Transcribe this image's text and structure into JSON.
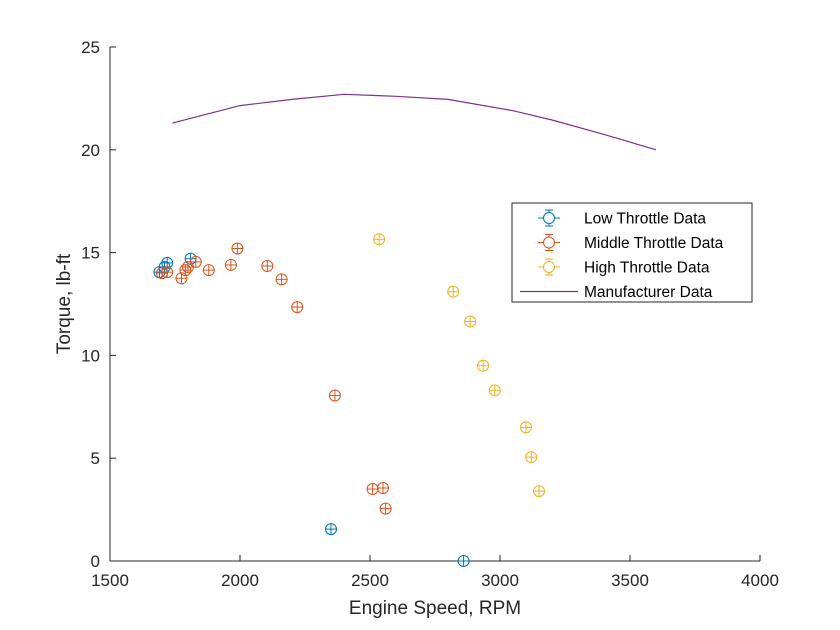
{
  "chart_data": {
    "type": "scatter",
    "title": "",
    "xlabel": "Engine Speed, RPM",
    "ylabel": "Torque, lb-ft",
    "xlim": [
      1500,
      4000
    ],
    "ylim": [
      0,
      25
    ],
    "xticks": [
      1500,
      2000,
      2500,
      3000,
      3500,
      4000
    ],
    "yticks": [
      0,
      5,
      10,
      15,
      20,
      25
    ],
    "xtick_labels": [
      "1500",
      "2000",
      "2500",
      "3000",
      "3500",
      "4000"
    ],
    "ytick_labels": [
      "0",
      "5",
      "10",
      "15",
      "20",
      "25"
    ],
    "grid": false,
    "legend_position": "right, mid-upper",
    "series": [
      {
        "name": "Low Throttle Data",
        "style": "errorbar-circle",
        "color": "#0072BD",
        "points": [
          [
            1690,
            14.05
          ],
          [
            1710,
            14.3
          ],
          [
            1720,
            14.5
          ],
          [
            1810,
            14.7
          ],
          [
            2350,
            1.55
          ],
          [
            2860,
            0.0
          ]
        ]
      },
      {
        "name": "Middle Throttle Data",
        "style": "errorbar-circle",
        "color": "#D95319",
        "points": [
          [
            1700,
            14.0
          ],
          [
            1720,
            14.05
          ],
          [
            1775,
            13.75
          ],
          [
            1790,
            14.15
          ],
          [
            1800,
            14.3
          ],
          [
            1830,
            14.55
          ],
          [
            1880,
            14.15
          ],
          [
            1965,
            14.4
          ],
          [
            1990,
            15.2
          ],
          [
            2105,
            14.35
          ],
          [
            2160,
            13.7
          ],
          [
            2220,
            12.35
          ],
          [
            2365,
            8.05
          ],
          [
            2510,
            3.5
          ],
          [
            2550,
            3.55
          ],
          [
            2560,
            2.55
          ]
        ]
      },
      {
        "name": "High Throttle Data",
        "style": "errorbar-circle",
        "color": "#EDB120",
        "points": [
          [
            2535,
            15.65
          ],
          [
            2820,
            13.1
          ],
          [
            2885,
            11.65
          ],
          [
            2935,
            9.5
          ],
          [
            2980,
            8.3
          ],
          [
            3100,
            6.5
          ],
          [
            3120,
            5.05
          ],
          [
            3150,
            3.4
          ]
        ]
      },
      {
        "name": "Manufacturer Data",
        "style": "line",
        "color": "#7E2F8E",
        "points": [
          [
            1740,
            21.3
          ],
          [
            2000,
            22.15
          ],
          [
            2200,
            22.45
          ],
          [
            2400,
            22.7
          ],
          [
            2600,
            22.6
          ],
          [
            2800,
            22.45
          ],
          [
            3050,
            21.9
          ],
          [
            3200,
            21.45
          ],
          [
            3400,
            20.75
          ],
          [
            3600,
            20.0
          ]
        ]
      }
    ]
  }
}
